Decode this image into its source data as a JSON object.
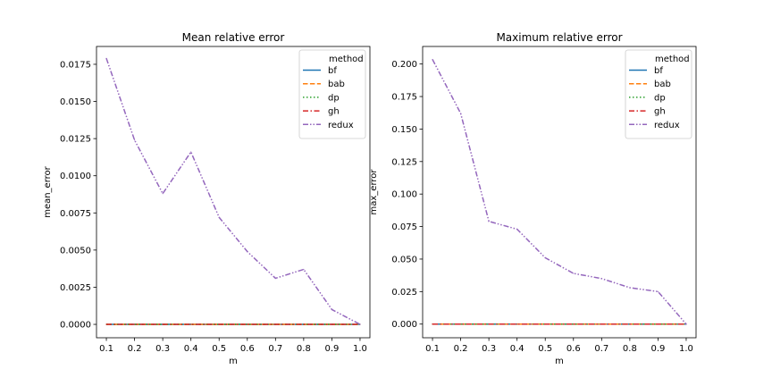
{
  "chart_data": [
    {
      "type": "line",
      "title": "Mean relative error",
      "xlabel": "m",
      "ylabel": "mean_error",
      "x": [
        0.1,
        0.2,
        0.3,
        0.4,
        0.5,
        0.6,
        0.7,
        0.8,
        0.9,
        1.0
      ],
      "xticks": [
        "0.1",
        "0.2",
        "0.3",
        "0.4",
        "0.5",
        "0.6",
        "0.7",
        "0.8",
        "0.9",
        "1.0"
      ],
      "yticks": [
        "0.0000",
        "0.0025",
        "0.0050",
        "0.0075",
        "0.0100",
        "0.0125",
        "0.0150",
        "0.0175"
      ],
      "ylim": [
        -0.0009,
        0.0187
      ],
      "legend_title": "method",
      "legend_position": "top-right",
      "grid": false,
      "series": [
        {
          "name": "bf",
          "color": "#1f77b4",
          "dash": "solid",
          "values": [
            0,
            0,
            0,
            0,
            0,
            0,
            0,
            0,
            0,
            0
          ]
        },
        {
          "name": "bab",
          "color": "#ff7f0e",
          "dash": "dashed",
          "values": [
            0,
            0,
            0,
            0,
            0,
            0,
            0,
            0,
            0,
            0
          ]
        },
        {
          "name": "dp",
          "color": "#2ca02c",
          "dash": "dotted",
          "values": [
            0,
            0,
            0,
            0,
            0,
            0,
            0,
            0,
            0,
            0
          ]
        },
        {
          "name": "gh",
          "color": "#d62728",
          "dash": "dashdot",
          "values": [
            0,
            0,
            0,
            0,
            0,
            0,
            0,
            0,
            0,
            0
          ]
        },
        {
          "name": "redux",
          "color": "#9467bd",
          "dash": "dashdotdot",
          "values": [
            0.0179,
            0.0124,
            0.0088,
            0.0116,
            0.0072,
            0.0049,
            0.0031,
            0.0037,
            0.001,
            0.0
          ]
        }
      ]
    },
    {
      "type": "line",
      "title": "Maximum relative error",
      "xlabel": "m",
      "ylabel": "max_error",
      "x": [
        0.1,
        0.2,
        0.3,
        0.4,
        0.5,
        0.6,
        0.7,
        0.8,
        0.9,
        1.0
      ],
      "xticks": [
        "0.1",
        "0.2",
        "0.3",
        "0.4",
        "0.5",
        "0.6",
        "0.7",
        "0.8",
        "0.9",
        "1.0"
      ],
      "yticks": [
        "0.000",
        "0.025",
        "0.050",
        "0.075",
        "0.100",
        "0.125",
        "0.150",
        "0.175",
        "0.200"
      ],
      "ylim": [
        -0.0105,
        0.2135
      ],
      "legend_title": "method",
      "legend_position": "top-right",
      "grid": false,
      "series": [
        {
          "name": "bf",
          "color": "#1f77b4",
          "dash": "solid",
          "values": [
            0,
            0,
            0,
            0,
            0,
            0,
            0,
            0,
            0,
            0
          ]
        },
        {
          "name": "bab",
          "color": "#ff7f0e",
          "dash": "dashed",
          "values": [
            0,
            0,
            0,
            0,
            0,
            0,
            0,
            0,
            0,
            0
          ]
        },
        {
          "name": "dp",
          "color": "#2ca02c",
          "dash": "dotted",
          "values": [
            0,
            0,
            0,
            0,
            0,
            0,
            0,
            0,
            0,
            0
          ]
        },
        {
          "name": "gh",
          "color": "#d62728",
          "dash": "dashdot",
          "values": [
            0,
            0,
            0,
            0,
            0,
            0,
            0,
            0,
            0,
            0
          ]
        },
        {
          "name": "redux",
          "color": "#9467bd",
          "dash": "dashdotdot",
          "values": [
            0.2035,
            0.162,
            0.079,
            0.073,
            0.051,
            0.039,
            0.035,
            0.028,
            0.025,
            0.0
          ]
        }
      ]
    }
  ]
}
